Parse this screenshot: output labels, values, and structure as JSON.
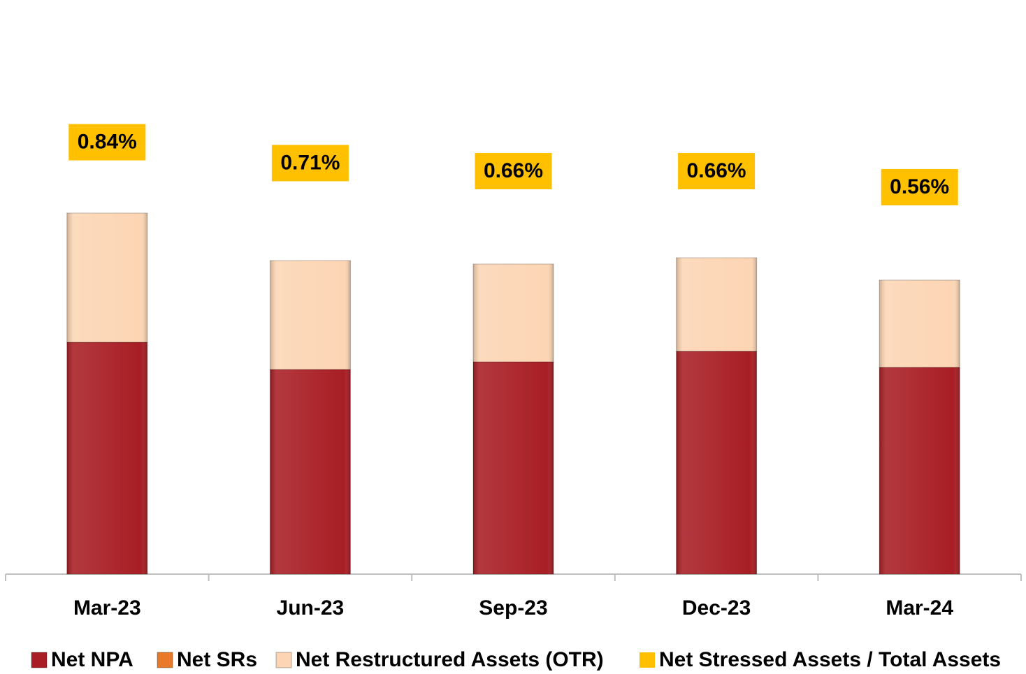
{
  "chart_data": {
    "type": "stacked-bar",
    "categories": [
      "Mar-23",
      "Jun-23",
      "Sep-23",
      "Dec-23",
      "Mar-24"
    ],
    "series": [
      {
        "name": "Net NPA",
        "color": "#a81e24",
        "values": [
          332,
          293,
          304,
          319,
          296
        ]
      },
      {
        "name": "Net SRs",
        "color": "#e87a2a",
        "values": [
          0,
          0,
          0,
          0,
          0
        ]
      },
      {
        "name": "Net Restructured Assets (OTR)",
        "color": "#fcd5b4",
        "values": [
          185,
          156,
          140,
          134,
          125
        ]
      },
      {
        "name": "Net Stressed Assets / Total Assets",
        "color": "#ffc000",
        "axis": "y2",
        "values": [
          0.84,
          0.71,
          0.66,
          0.66,
          0.56
        ],
        "value_labels": [
          "0.84%",
          "0.71%",
          "0.66%",
          "0.66%",
          "0.56%"
        ]
      }
    ],
    "ylim": [
      0,
      800
    ],
    "y2lim": [
      -1.85,
      1.63
    ]
  }
}
